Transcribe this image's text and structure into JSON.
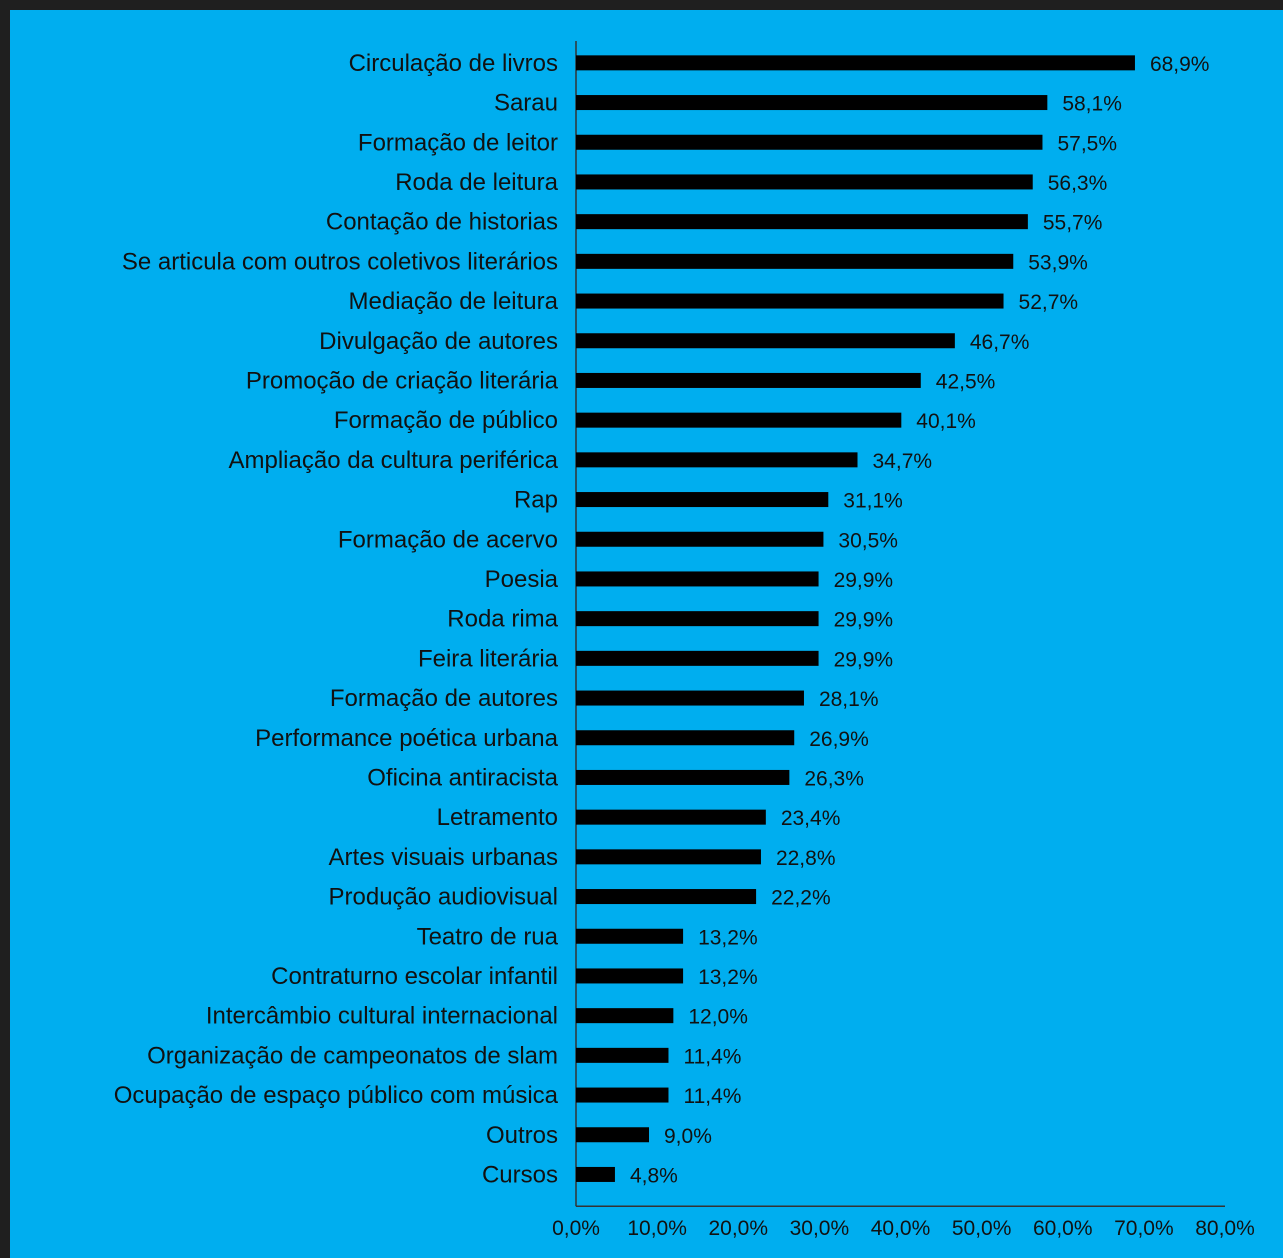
{
  "chart_data": {
    "type": "bar",
    "orientation": "horizontal",
    "categories": [
      "Circulação de livros",
      "Sarau",
      "Formação de leitor",
      "Roda de leitura",
      "Contação de historias",
      "Se articula com outros coletivos literários",
      "Mediação de leitura",
      "Divulgação de autores",
      "Promoção de criação literária",
      "Formação de público",
      "Ampliação da cultura periférica",
      "Rap",
      "Formação de acervo",
      "Poesia",
      "Roda rima",
      "Feira literária",
      "Formação de autores",
      "Performance poética urbana",
      "Oficina antiracista",
      "Letramento",
      "Artes visuais urbanas",
      "Produção audiovisual",
      "Teatro de rua",
      "Contraturno escolar infantil",
      "Intercâmbio cultural internacional",
      "Organização de campeonatos de slam",
      "Ocupação de espaço público com música",
      "Outros",
      "Cursos"
    ],
    "values": [
      68.9,
      58.1,
      57.5,
      56.3,
      55.7,
      53.9,
      52.7,
      46.7,
      42.5,
      40.1,
      34.7,
      31.1,
      30.5,
      29.9,
      29.9,
      29.9,
      28.1,
      26.9,
      26.3,
      23.4,
      22.8,
      22.2,
      13.2,
      13.2,
      12.0,
      11.4,
      11.4,
      9.0,
      4.8
    ],
    "value_labels": [
      "68,9%",
      "58,1%",
      "57,5%",
      "56,3%",
      "55,7%",
      "53,9%",
      "52,7%",
      "46,7%",
      "42,5%",
      "40,1%",
      "34,7%",
      "31,1%",
      "30,5%",
      "29,9%",
      "29,9%",
      "29,9%",
      "28,1%",
      "26,9%",
      "26,3%",
      "23,4%",
      "22,8%",
      "22,2%",
      "13,2%",
      "13,2%",
      "12,0%",
      "11,4%",
      "11,4%",
      "9,0%",
      "4,8%"
    ],
    "xticks": [
      "0,0%",
      "10,0%",
      "20,0%",
      "30,0%",
      "40,0%",
      "50,0%",
      "60,0%",
      "70,0%",
      "80,0%"
    ],
    "xlim": [
      0,
      80
    ],
    "grid": false,
    "bar_color": "#000000",
    "background_color": "#00aeef",
    "frame_color": "#1f1f1f"
  }
}
